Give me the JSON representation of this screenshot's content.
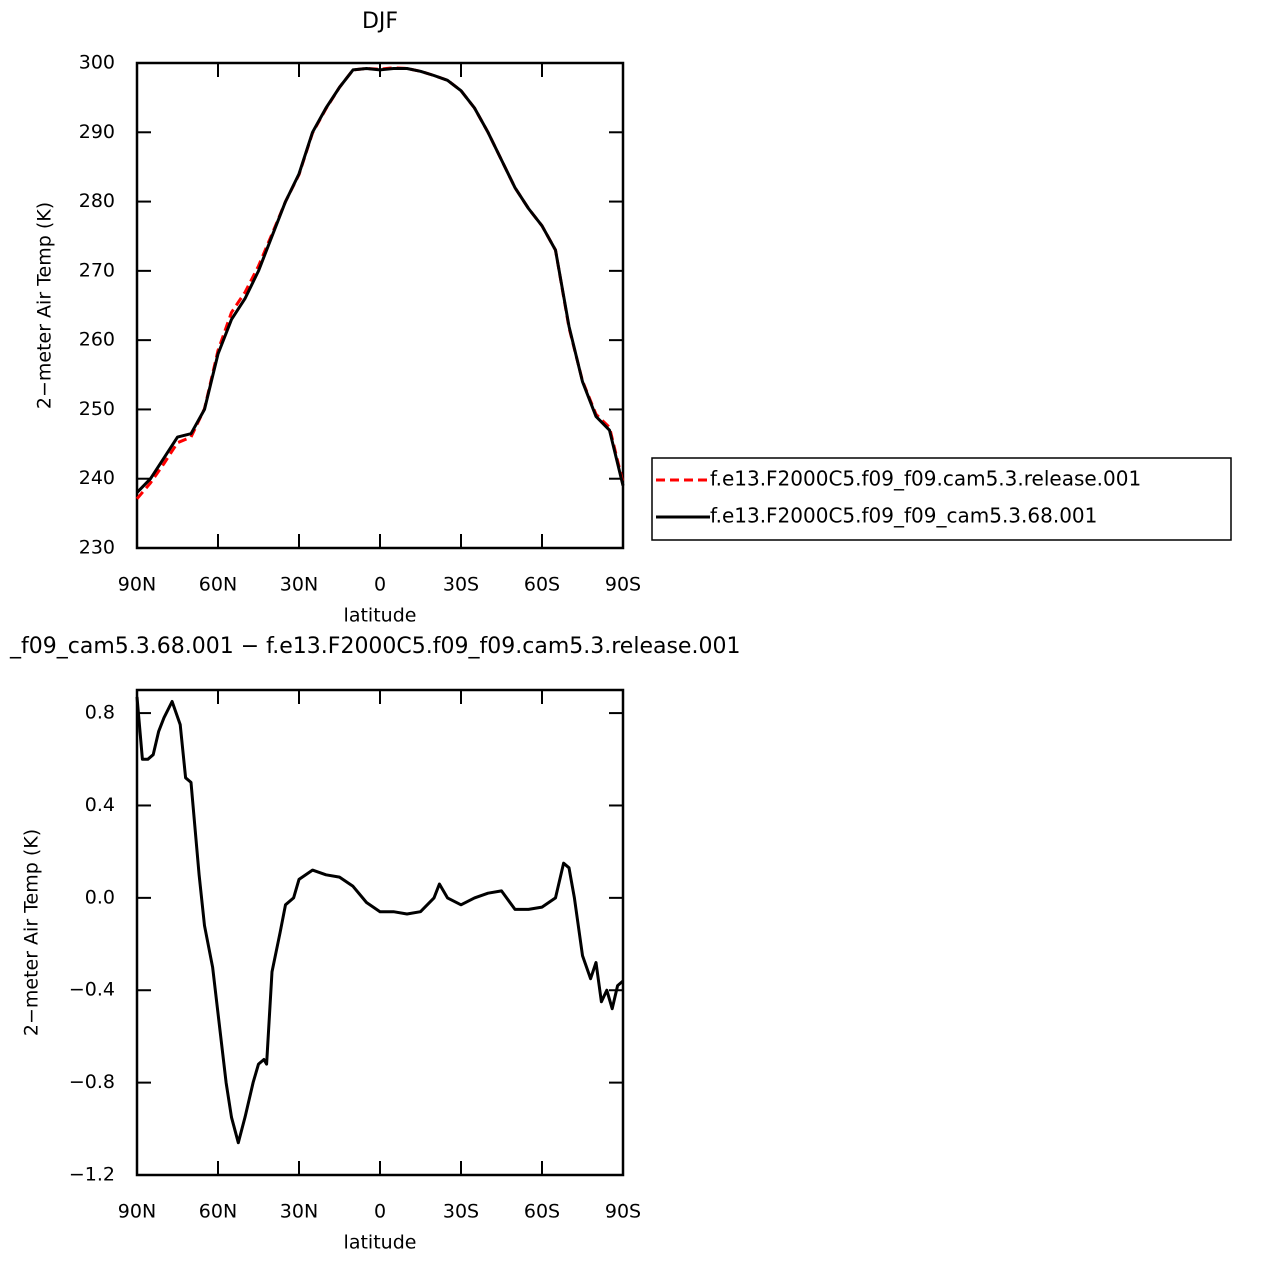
{
  "chart_data": [
    {
      "type": "line",
      "title": "DJF",
      "xlabel": "latitude",
      "ylabel": "2−meter Air Temp (K)",
      "x": [
        90,
        85,
        80,
        75,
        70,
        65,
        60,
        55,
        50,
        45,
        40,
        35,
        30,
        25,
        20,
        15,
        10,
        5,
        0,
        -5,
        -10,
        -15,
        -20,
        -25,
        -30,
        -35,
        -40,
        -45,
        -50,
        -55,
        -60,
        -65,
        -70,
        -75,
        -80,
        -85,
        -90
      ],
      "series": [
        {
          "name": "f.e13.F2000C5.f09_f09.cam5.3.release.001",
          "color": "#ff0000",
          "dashed": true,
          "values": [
            237.1,
            239.4,
            242.2,
            245.2,
            246.0,
            250.1,
            258.5,
            264.0,
            266.9,
            270.7,
            275.3,
            280.0,
            283.9,
            289.9,
            293.4,
            296.5,
            299.0,
            299.2,
            299.1,
            299.3,
            299.2,
            298.8,
            298.2,
            297.5,
            296.0,
            293.5,
            290.0,
            286.0,
            282.0,
            279.0,
            276.5,
            273.0,
            261.8,
            254.1,
            249.3,
            247.4,
            239.4
          ]
        },
        {
          "name": "f.e13.F2000C5.f09_f09_cam5.3.68.001",
          "color": "#000000",
          "dashed": false,
          "values": [
            238.0,
            240.0,
            243.0,
            246.0,
            246.5,
            250.0,
            258.0,
            263.0,
            266.0,
            270.0,
            275.0,
            280.0,
            284.0,
            290.0,
            293.5,
            296.5,
            299.0,
            299.2,
            299.0,
            299.2,
            299.2,
            298.8,
            298.2,
            297.5,
            296.0,
            293.5,
            290.0,
            286.0,
            282.0,
            279.0,
            276.5,
            273.0,
            262.0,
            254.0,
            249.0,
            247.0,
            239.0
          ]
        }
      ],
      "xlim": [
        90,
        -90
      ],
      "xticks": [
        {
          "value": 90,
          "label": "90N"
        },
        {
          "value": 60,
          "label": "60N"
        },
        {
          "value": 30,
          "label": "30N"
        },
        0,
        {
          "value": -30,
          "label": "30S"
        },
        {
          "value": -60,
          "label": "60S"
        },
        {
          "value": -90,
          "label": "90S"
        }
      ],
      "ylim": [
        230,
        300
      ],
      "yticks": [
        230,
        240,
        250,
        260,
        270,
        280,
        290,
        300
      ],
      "legend": "outside right"
    },
    {
      "type": "line",
      "title": "_f09_cam5.3.68.001 − f.e13.F2000C5.f09_f09.cam5.3.release.001",
      "xlabel": "latitude",
      "ylabel": "2−meter Air Temp (K)",
      "x": [
        90,
        88,
        86,
        84,
        82,
        80,
        77,
        74,
        72,
        70,
        67,
        65,
        62,
        60,
        57,
        55,
        52.5,
        50,
        47,
        45,
        43,
        42,
        40,
        37,
        35,
        32,
        30,
        25,
        20,
        15,
        10,
        5,
        0,
        -5,
        -10,
        -15,
        -20,
        -22,
        -25,
        -30,
        -35,
        -40,
        -45,
        -50,
        -55,
        -60,
        -65,
        -68,
        -70,
        -72,
        -75,
        -78,
        -80,
        -82,
        -84,
        -86,
        -88,
        -90
      ],
      "values": [
        0.87,
        0.6,
        0.6,
        0.62,
        0.72,
        0.78,
        0.85,
        0.75,
        0.52,
        0.5,
        0.1,
        -0.12,
        -0.3,
        -0.5,
        -0.8,
        -0.95,
        -1.06,
        -0.95,
        -0.8,
        -0.72,
        -0.7,
        -0.72,
        -0.32,
        -0.15,
        -0.03,
        0.0,
        0.08,
        0.12,
        0.1,
        0.09,
        0.05,
        -0.02,
        -0.06,
        -0.06,
        -0.07,
        -0.06,
        0.0,
        0.06,
        0.0,
        -0.03,
        0.0,
        0.02,
        0.03,
        -0.05,
        -0.05,
        -0.04,
        0.0,
        0.15,
        0.13,
        0.0,
        -0.25,
        -0.35,
        -0.28,
        -0.45,
        -0.4,
        -0.48,
        -0.38,
        -0.36
      ],
      "color": "#000000",
      "xlim": [
        90,
        -90
      ],
      "xticks": [
        {
          "value": 90,
          "label": "90N"
        },
        {
          "value": 60,
          "label": "60N"
        },
        {
          "value": 30,
          "label": "30N"
        },
        0,
        {
          "value": -30,
          "label": "30S"
        },
        {
          "value": -60,
          "label": "60S"
        },
        {
          "value": -90,
          "label": "90S"
        }
      ],
      "ylim": [
        -1.2,
        0.9
      ],
      "yticks": [
        {
          "value": -1.2,
          "label": "−1.2"
        },
        {
          "value": -0.8,
          "label": "−0.8"
        },
        {
          "value": -0.4,
          "label": "−0.4"
        },
        {
          "value": 0.0,
          "label": "0.0"
        },
        0.4,
        0.8
      ]
    }
  ]
}
